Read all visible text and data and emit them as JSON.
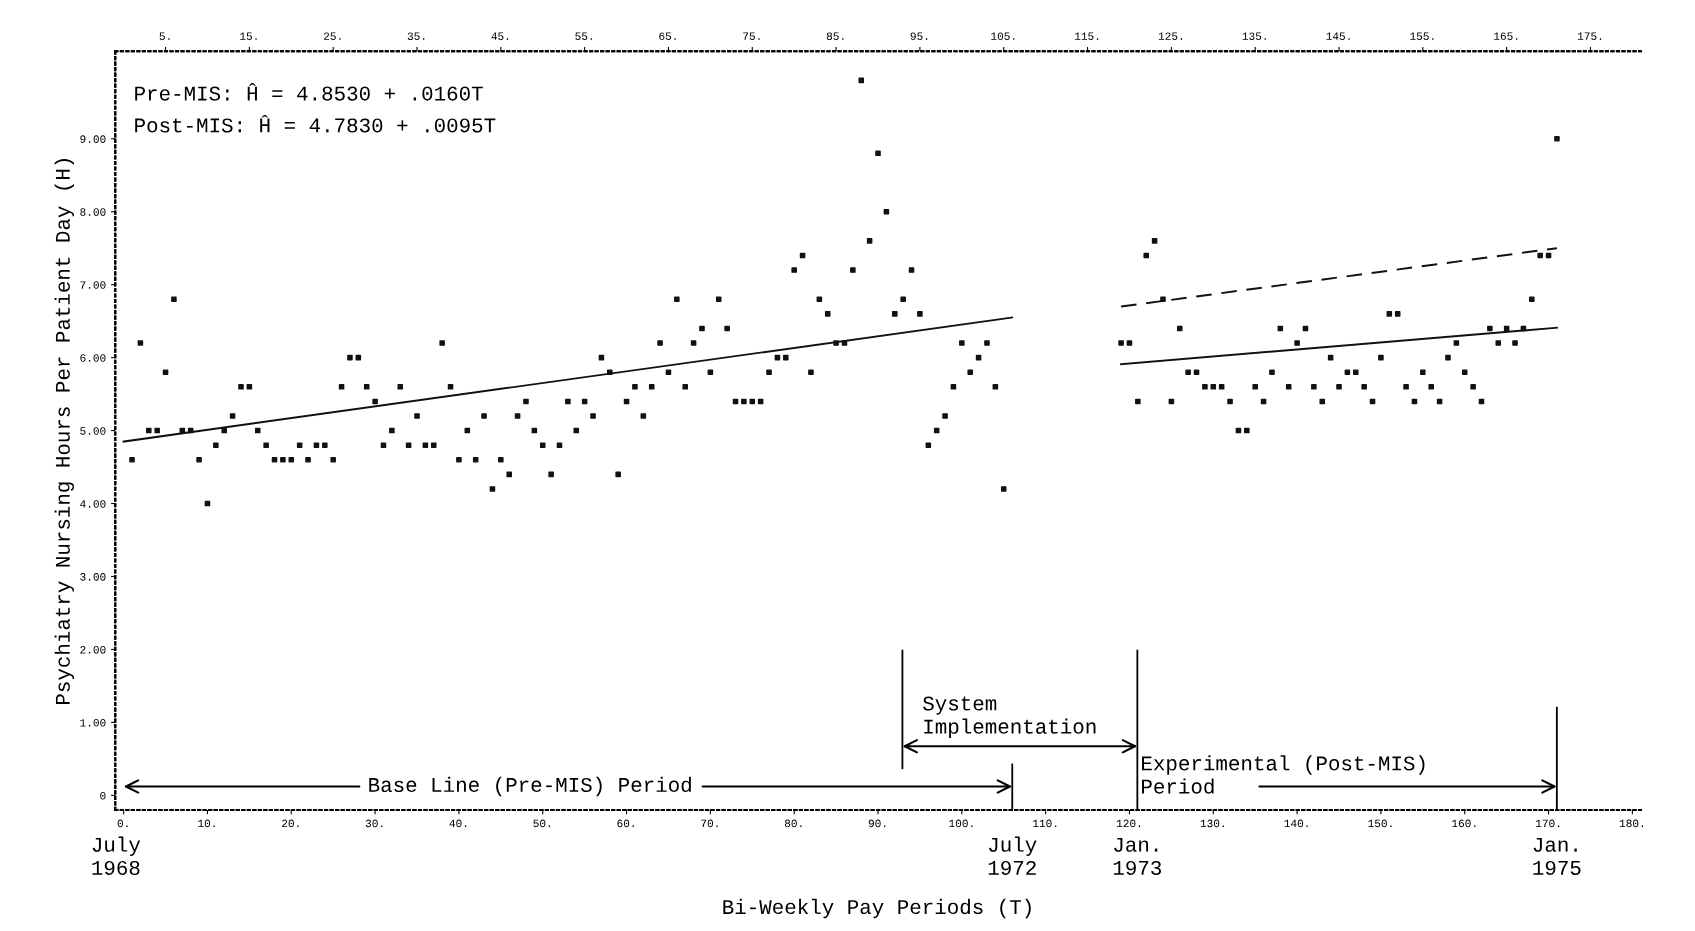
{
  "chart_data": {
    "type": "scatter",
    "xlabel": "Bi-Weekly Pay Periods (T)",
    "ylabel": "Psychiatry Nursing Hours Per Patient Day (H)",
    "xlim": [
      -1,
      181
    ],
    "xticks": [
      {
        "value": 0,
        "label": "0."
      },
      {
        "value": 10,
        "label": "10."
      },
      {
        "value": 20,
        "label": "20."
      },
      {
        "value": 30,
        "label": "30."
      },
      {
        "value": 40,
        "label": "40."
      },
      {
        "value": 50,
        "label": "50."
      },
      {
        "value": 60,
        "label": "60."
      },
      {
        "value": 70,
        "label": "70."
      },
      {
        "value": 80,
        "label": "80."
      },
      {
        "value": 90,
        "label": "90."
      },
      {
        "value": 100,
        "label": "100."
      },
      {
        "value": 110,
        "label": "110."
      },
      {
        "value": 120,
        "label": "120."
      },
      {
        "value": 130,
        "label": "130."
      },
      {
        "value": 140,
        "label": "140."
      },
      {
        "value": 150,
        "label": "150."
      },
      {
        "value": 160,
        "label": "160."
      },
      {
        "value": 170,
        "label": "170."
      },
      {
        "value": 180,
        "label": "180."
      }
    ],
    "x2lim": [
      -1,
      181
    ],
    "x2ticks": [
      {
        "value": 5,
        "label": "5."
      },
      {
        "value": 15,
        "label": "15."
      },
      {
        "value": 25,
        "label": "25."
      },
      {
        "value": 35,
        "label": "35."
      },
      {
        "value": 45,
        "label": "45."
      },
      {
        "value": 55,
        "label": "55."
      },
      {
        "value": 65,
        "label": "65."
      },
      {
        "value": 75,
        "label": "75."
      },
      {
        "value": 85,
        "label": "85."
      },
      {
        "value": 95,
        "label": "95."
      },
      {
        "value": 105,
        "label": "105."
      },
      {
        "value": 115,
        "label": "115."
      },
      {
        "value": 125,
        "label": "125."
      },
      {
        "value": 135,
        "label": "135."
      },
      {
        "value": 145,
        "label": "145."
      },
      {
        "value": 155,
        "label": "155."
      },
      {
        "value": 165,
        "label": "165."
      },
      {
        "value": 175,
        "label": "175."
      }
    ],
    "ylim": [
      -0.2,
      10.2
    ],
    "yticks": [
      0,
      {
        "value": 1,
        "label": "1.00"
      },
      {
        "value": 2,
        "label": "2.00"
      },
      {
        "value": 3,
        "label": "3.00"
      },
      {
        "value": 4,
        "label": "4.00"
      },
      {
        "value": 5,
        "label": "5.00"
      },
      {
        "value": 6,
        "label": "6.00"
      },
      {
        "value": 7,
        "label": "7.00"
      },
      {
        "value": 8,
        "label": "8.00"
      },
      {
        "value": 9,
        "label": "9.00"
      }
    ],
    "grid": false,
    "legend": false,
    "series": [
      {
        "color": "#111111",
        "marker": "square",
        "x": [
          1,
          2,
          3,
          4,
          5,
          6,
          7,
          8,
          9,
          10,
          11,
          12,
          13,
          14,
          15,
          16,
          17,
          18,
          19,
          20,
          21,
          22,
          23,
          24,
          25,
          26,
          27,
          28,
          29,
          30,
          31,
          32,
          33,
          34,
          35,
          36,
          37,
          38,
          39,
          40,
          41,
          42,
          43,
          44,
          45,
          46,
          47,
          48,
          49,
          50,
          51,
          52,
          53,
          54,
          55,
          56,
          57,
          58,
          59,
          60,
          61,
          62,
          63,
          64,
          65,
          66,
          67,
          68,
          69,
          70,
          71,
          72,
          73,
          74,
          75,
          76,
          77,
          78,
          79,
          80,
          81,
          82,
          83,
          84,
          85,
          86,
          87,
          88,
          89,
          90,
          91,
          92,
          93,
          94,
          95,
          96,
          97,
          98,
          99,
          100,
          101,
          102,
          103,
          104,
          105
        ],
        "values": [
          4.6,
          6.2,
          5.0,
          5.0,
          5.8,
          6.8,
          5.0,
          5.0,
          4.6,
          4.0,
          4.8,
          5.0,
          5.2,
          5.6,
          5.6,
          5.0,
          4.8,
          4.6,
          4.6,
          4.6,
          4.8,
          4.6,
          4.8,
          4.8,
          4.6,
          5.6,
          6.0,
          6.0,
          5.6,
          5.4,
          4.8,
          5.0,
          5.6,
          4.8,
          5.2,
          4.8,
          4.8,
          6.2,
          5.6,
          4.6,
          5.0,
          4.6,
          5.2,
          4.2,
          4.6,
          4.4,
          5.2,
          5.4,
          5.0,
          4.8,
          4.4,
          4.8,
          5.4,
          5.0,
          5.4,
          5.2,
          6.0,
          5.8,
          4.4,
          5.4,
          5.6,
          5.2,
          5.6,
          6.2,
          5.8,
          6.8,
          5.6,
          6.2,
          6.4,
          5.8,
          6.8,
          6.4,
          5.4,
          5.4,
          5.4,
          5.4,
          5.8,
          6.0,
          6.0,
          7.2,
          7.4,
          5.8,
          6.8,
          6.6,
          6.2,
          6.2,
          7.2,
          9.8,
          7.6,
          8.8,
          8.0,
          6.6,
          6.8,
          7.2,
          6.6,
          4.8,
          5.0,
          5.2,
          5.6,
          6.2,
          5.8,
          6.0,
          6.2,
          5.6,
          4.2
        ]
      },
      {
        "color": "#111111",
        "marker": "square",
        "x": [
          119,
          120,
          121,
          122,
          123,
          124,
          125,
          126,
          127,
          128,
          129,
          130,
          131,
          132,
          133,
          134,
          135,
          136,
          137,
          138,
          139,
          140,
          141,
          142,
          143,
          144,
          145,
          146,
          147,
          148,
          149,
          150,
          151,
          152,
          153,
          154,
          155,
          156,
          157,
          158,
          159,
          160,
          161,
          162,
          163,
          164,
          165,
          166,
          167,
          168,
          169,
          170,
          171
        ],
        "values": [
          6.2,
          6.2,
          5.4,
          7.4,
          7.6,
          6.8,
          5.4,
          6.4,
          5.8,
          5.8,
          5.6,
          5.6,
          5.6,
          5.4,
          5.0,
          5.0,
          5.6,
          5.4,
          5.8,
          6.4,
          5.6,
          6.2,
          6.4,
          5.6,
          5.4,
          6.0,
          5.6,
          5.8,
          5.8,
          5.6,
          5.4,
          6.0,
          6.6,
          6.6,
          5.6,
          5.4,
          5.8,
          5.6,
          5.4,
          6.0,
          6.2,
          5.8,
          5.6,
          5.4,
          6.4,
          6.2,
          6.4,
          6.2,
          6.4,
          6.8,
          7.4,
          7.4,
          9.0
        ]
      },
      {
        "type": "line",
        "color": "#111111",
        "line_style": "solid",
        "x": [
          0,
          106
        ],
        "values": [
          4.85,
          6.55
        ]
      },
      {
        "type": "line",
        "color": "#111111",
        "line_style": "solid",
        "x": [
          119,
          171
        ],
        "values": [
          5.91,
          6.41
        ]
      },
      {
        "type": "line",
        "color": "#111111",
        "line_style": "dashed",
        "x": [
          119,
          171
        ],
        "values": [
          6.7,
          7.5
        ]
      }
    ],
    "annotations": [
      "Pre-MIS: Ĥ = 4.8530 + .0160T",
      "Post-MIS: Ĥ = 4.7830 + .0095T",
      "Base Line (Pre-MIS) Period",
      "System\nImplementation",
      "Experimental (Post-MIS)\nPeriod",
      "July\n1968",
      "July\n1972",
      "Jan.\n1973",
      "Jan.\n1975"
    ]
  }
}
